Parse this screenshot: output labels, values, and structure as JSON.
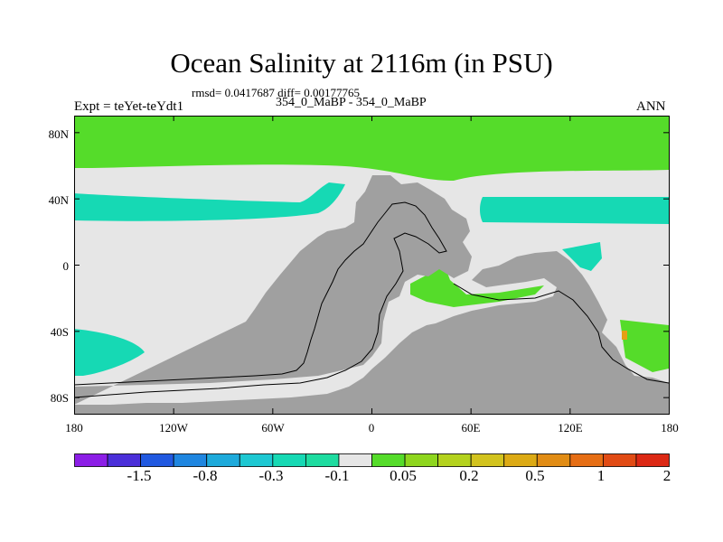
{
  "title": "Ocean Salinity at 2116m (in PSU)",
  "subtitle_stats": "rmsd= 0.0417687 diff= 0.00177765",
  "subtitle_cases": "354_0_MaBP - 354_0_MaBP",
  "experiment": "Expt = teYet-teYdt1",
  "season": "ANN",
  "lat_ticks": [
    {
      "lat": 80,
      "label": "80N"
    },
    {
      "lat": 40,
      "label": "40N"
    },
    {
      "lat": 0,
      "label": "0"
    },
    {
      "lat": -40,
      "label": "40S"
    },
    {
      "lat": -80,
      "label": "80S"
    }
  ],
  "lon_ticks": [
    {
      "lon": -180,
      "label": "180"
    },
    {
      "lon": -120,
      "label": "120W"
    },
    {
      "lon": -60,
      "label": "60W"
    },
    {
      "lon": 0,
      "label": "0"
    },
    {
      "lon": 60,
      "label": "60E"
    },
    {
      "lon": 120,
      "label": "120E"
    },
    {
      "lon": 180,
      "label": "180"
    }
  ],
  "colorbar": {
    "colors": [
      "#8c1ee6",
      "#4b2fd9",
      "#2159e0",
      "#1f86e0",
      "#1eaadb",
      "#1ec8d2",
      "#16d9b4",
      "#1edca0",
      "#e6e6e6",
      "#55dc2a",
      "#8ed61e",
      "#b4d21e",
      "#d2c31e",
      "#dcaa14",
      "#e18c14",
      "#e66e14",
      "#e14b14",
      "#dc2814"
    ],
    "labels": [
      {
        "boundary": 1,
        "label": "-1.5"
      },
      {
        "boundary": 3,
        "label": "-0.8"
      },
      {
        "boundary": 5,
        "label": "-0.3"
      },
      {
        "boundary": 7,
        "label": "-0.1"
      },
      {
        "boundary": 9,
        "label": "0.05"
      },
      {
        "boundary": 11,
        "label": "0.2"
      },
      {
        "boundary": 13,
        "label": "0.5"
      },
      {
        "boundary": 15,
        "label": "1"
      },
      {
        "boundary": 17,
        "label": "2"
      }
    ]
  },
  "map_colors": {
    "land": "#a0a0a0",
    "near_zero": "#e6e6e6",
    "positive_small": "#55dc2a",
    "negative_small": "#16d9b4",
    "positive_mid": "#8ed61e",
    "positive_high": "#e6a014",
    "coast_line": "#000000"
  }
}
